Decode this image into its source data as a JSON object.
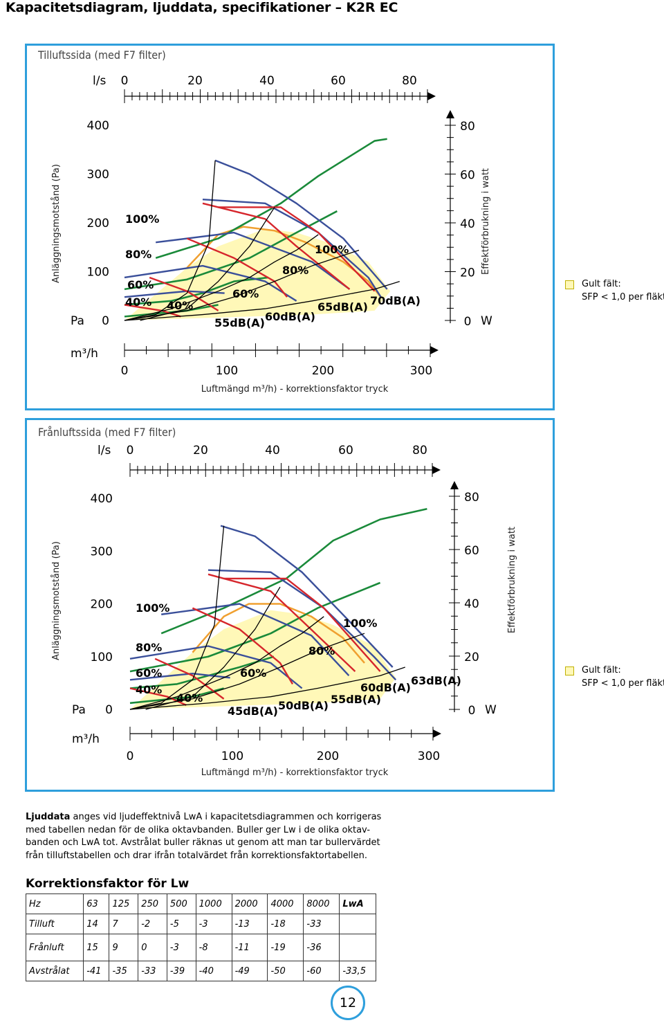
{
  "page_title": "Kapacitetsdiagram, ljuddata, specifikationer – K2R EC",
  "legend": {
    "line1": "Gult fält:",
    "line2": "SFP < 1,0 per fläkt",
    "fill_color": "#fff8b8"
  },
  "charts": [
    {
      "panel_title": "Tilluftssida (med F7 filter)",
      "ls_unit": "l/s",
      "ls_ticks": [
        "0",
        "20",
        "40",
        "60",
        "80"
      ],
      "pa_ticks": [
        "400",
        "300",
        "200",
        "100",
        "0"
      ],
      "pa_unit": "Pa",
      "w_ticks": [
        "80",
        "60",
        "40",
        "20",
        "0"
      ],
      "w_unit": "W",
      "m3h_unit": "m³/h",
      "m3h_ticks": [
        "0",
        "100",
        "200",
        "300"
      ],
      "left_label": "Anläggningsmotstånd (Pa)",
      "right_label": "Effektförbrukning i watt",
      "x_label": "Luftmängd m³/h) - korrektionsfaktor tryck",
      "speed_labels_left": [
        "100%",
        "80%",
        "60%",
        "40%"
      ],
      "speed_labels_mid": [
        "40%",
        "60%",
        "80%",
        "100%"
      ],
      "db_labels": [
        "55dB(A)",
        "60dB(A)",
        "65dB(A)",
        "70dB(A)"
      ]
    },
    {
      "panel_title": "Frånluftssida (med F7 filter)",
      "ls_unit": "l/s",
      "ls_ticks": [
        "0",
        "20",
        "40",
        "60",
        "80"
      ],
      "pa_ticks": [
        "400",
        "300",
        "200",
        "100",
        "0"
      ],
      "pa_unit": "Pa",
      "w_ticks": [
        "80",
        "60",
        "40",
        "20",
        "0"
      ],
      "w_unit": "W",
      "m3h_unit": "m³/h",
      "m3h_ticks": [
        "0",
        "100",
        "200",
        "300"
      ],
      "left_label": "Anläggningsmotstånd (Pa)",
      "right_label": "Effektförbrukning i watt",
      "x_label": "Luftmängd m³/h) - korrektionsfaktor tryck",
      "speed_labels_left": [
        "100%",
        "80%",
        "60%",
        "40%"
      ],
      "speed_labels_mid": [
        "40%",
        "60%",
        "80%",
        "100%"
      ],
      "db_labels": [
        "45dB(A)",
        "50dB(A)",
        "55dB(A)",
        "60dB(A)",
        "63dB(A)"
      ]
    }
  ],
  "ljud": {
    "lead": "Ljuddata",
    "text": " anges vid ljudeffektnivå LwA i kapacitetsdiagrammen och korrigeras med tabellen nedan för de olika oktavbanden. Buller ger Lw i de olika oktav-banden och LwA tot. Avstrålat buller räknas ut genom att man tar bullervärdet från tilluftstabellen och drar ifrån totalvärdet från korrektionsfaktortabellen."
  },
  "korr": {
    "title": "Korrektionsfaktor för Lw",
    "rows": [
      [
        "Hz",
        "63",
        "125",
        "250",
        "500",
        "1000",
        "2000",
        "4000",
        "8000",
        "LwA"
      ],
      [
        "Tilluft",
        "14",
        "7",
        "-2",
        "-5",
        "-3",
        "-13",
        "-18",
        "-33",
        ""
      ],
      [
        "Frånluft",
        "15",
        "9",
        "0",
        "-3",
        "-8",
        "-11",
        "-19",
        "-36",
        ""
      ],
      [
        "Avstrålat",
        "-41",
        "-35",
        "-33",
        "-39",
        "-40",
        "-49",
        "-50",
        "-60",
        "-33,5"
      ]
    ]
  },
  "page_number": "12"
}
